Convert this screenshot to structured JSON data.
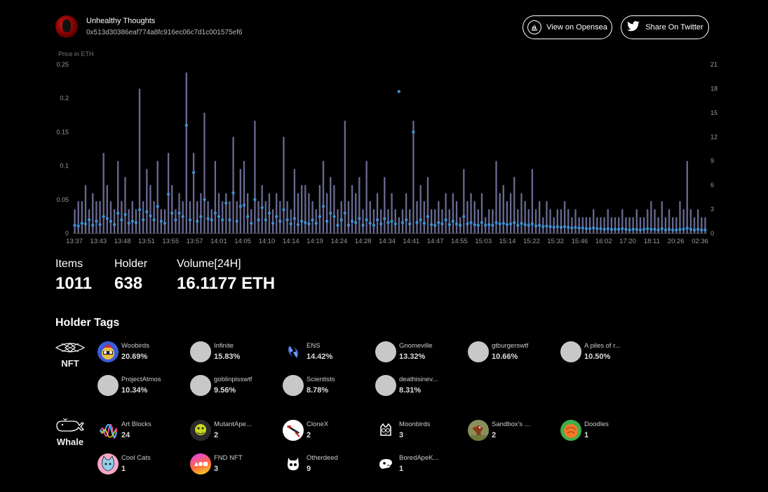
{
  "collection": {
    "name": "Unhealthy Thoughts",
    "address": "0x513d30386eaf774a8fc916ec06c7d1c001575ef6"
  },
  "buttons": {
    "opensea": "View on Opensea",
    "twitter": "Share On Twitter"
  },
  "chart_data": {
    "type": "bar",
    "title": "",
    "ylabel": "Price in ETH",
    "ylim": [
      0,
      0.25
    ],
    "yticks": [
      "0",
      "0.05",
      "0.1",
      "0.15",
      "0.2",
      "0.25"
    ],
    "y2lim": [
      0,
      21
    ],
    "y2ticks": [
      "0",
      "3",
      "6",
      "9",
      "12",
      "15",
      "18",
      "21"
    ],
    "xticks": [
      "13:37",
      "13:43",
      "13:48",
      "13:51",
      "13:55",
      "13:57",
      "14:01",
      "14:05",
      "14:10",
      "14:14",
      "14:19",
      "14:24",
      "14:28",
      "14:34",
      "14:41",
      "14:47",
      "14:55",
      "15:03",
      "15:14",
      "15:22",
      "15:32",
      "15:46",
      "16:02",
      "17:20",
      "18:11",
      "20:26",
      "02:36"
    ],
    "series": [
      {
        "name": "Volume (count)",
        "kind": "bar",
        "axis": "right",
        "color": "#6f6f9a",
        "values": [
          3,
          4,
          4,
          6,
          3,
          5,
          4,
          4,
          10,
          6,
          4,
          3,
          9,
          4,
          7,
          3,
          4,
          3,
          18,
          4,
          8,
          6,
          4,
          9,
          3,
          3,
          10,
          6,
          3,
          5,
          4,
          20,
          4,
          10,
          4,
          5,
          15,
          4,
          3,
          9,
          5,
          4,
          5,
          4,
          12,
          4,
          8,
          9,
          5,
          3,
          14,
          4,
          6,
          4,
          5,
          3,
          5,
          4,
          12,
          4,
          3,
          8,
          5,
          6,
          6,
          5,
          4,
          3,
          6,
          9,
          5,
          7,
          6,
          3,
          4,
          14,
          4,
          6,
          5,
          7,
          3,
          9,
          4,
          3,
          5,
          3,
          7,
          3,
          5,
          3,
          2,
          3,
          5,
          3,
          14,
          4,
          6,
          4,
          7,
          3,
          3,
          4,
          3,
          5,
          3,
          5,
          4,
          2,
          8,
          4,
          5,
          4,
          3,
          5,
          2,
          3,
          3,
          9,
          5,
          6,
          4,
          5,
          7,
          3,
          5,
          4,
          3,
          8,
          3,
          4,
          2,
          4,
          3,
          2,
          3,
          3,
          4,
          3,
          2,
          3,
          2,
          2,
          2,
          2,
          3,
          2,
          2,
          2,
          3,
          2,
          2,
          2,
          3,
          2,
          2,
          2,
          3,
          2,
          2,
          3,
          4,
          3,
          2,
          4,
          2,
          3,
          2,
          2,
          4,
          3,
          9,
          3,
          2,
          3,
          2,
          2
        ]
      },
      {
        "name": "Price (ETH)",
        "kind": "scatter",
        "axis": "left",
        "color": "#3d8fd0",
        "values": [
          0.012,
          0.011,
          0.015,
          0.014,
          0.02,
          0.012,
          0.018,
          0.013,
          0.025,
          0.022,
          0.018,
          0.013,
          0.03,
          0.02,
          0.028,
          0.015,
          0.018,
          0.016,
          0.035,
          0.02,
          0.032,
          0.026,
          0.02,
          0.04,
          0.018,
          0.015,
          0.058,
          0.03,
          0.02,
          0.03,
          0.025,
          0.16,
          0.02,
          0.09,
          0.018,
          0.025,
          0.05,
          0.022,
          0.02,
          0.03,
          0.025,
          0.02,
          0.045,
          0.02,
          0.06,
          0.018,
          0.04,
          0.042,
          0.025,
          0.015,
          0.05,
          0.02,
          0.038,
          0.02,
          0.03,
          0.015,
          0.025,
          0.018,
          0.035,
          0.02,
          0.014,
          0.022,
          0.013,
          0.018,
          0.016,
          0.014,
          0.02,
          0.015,
          0.025,
          0.04,
          0.018,
          0.03,
          0.025,
          0.012,
          0.02,
          0.03,
          0.012,
          0.018,
          0.016,
          0.022,
          0.012,
          0.02,
          0.015,
          0.012,
          0.02,
          0.014,
          0.022,
          0.016,
          0.018,
          0.014,
          0.21,
          0.016,
          0.02,
          0.014,
          0.15,
          0.016,
          0.02,
          0.015,
          0.025,
          0.013,
          0.012,
          0.016,
          0.014,
          0.02,
          0.013,
          0.018,
          0.014,
          0.012,
          0.025,
          0.014,
          0.016,
          0.013,
          0.012,
          0.016,
          0.012,
          0.013,
          0.012,
          0.016,
          0.014,
          0.015,
          0.013,
          0.014,
          0.016,
          0.012,
          0.015,
          0.013,
          0.012,
          0.014,
          0.011,
          0.012,
          0.01,
          0.011,
          0.01,
          0.009,
          0.01,
          0.009,
          0.01,
          0.009,
          0.008,
          0.009,
          0.008,
          0.008,
          0.007,
          0.007,
          0.008,
          0.007,
          0.007,
          0.006,
          0.007,
          0.006,
          0.006,
          0.006,
          0.007,
          0.006,
          0.005,
          0.006,
          0.006,
          0.005,
          0.006,
          0.007,
          0.006,
          0.006,
          0.005,
          0.007,
          0.005,
          0.006,
          0.005,
          0.005,
          0.006,
          0.006,
          0.008,
          0.006,
          0.005,
          0.006,
          0.005,
          0.005
        ]
      }
    ]
  },
  "stats": {
    "items_label": "Items",
    "items_value": "1011",
    "holder_label": "Holder",
    "holder_value": "638",
    "volume_label": "Volume[24H]",
    "volume_value": "16.1177 ETH"
  },
  "holder_tags": {
    "title": "Holder Tags",
    "nft_label": "NFT",
    "whale_label": "Whale",
    "nft": [
      {
        "name": "Woobirds",
        "value": "20.69%",
        "icon": "woobirds-avatar",
        "color": "#3b5bd8"
      },
      {
        "name": "Infinite",
        "value": "15.83%",
        "icon": "placeholder-avatar",
        "color": "#c8c8c8"
      },
      {
        "name": "ENS",
        "value": "14.42%",
        "icon": "ens-logo",
        "color": "#5b8cf5"
      },
      {
        "name": "Gnomeville",
        "value": "13.32%",
        "icon": "placeholder-avatar",
        "color": "#c8c8c8"
      },
      {
        "name": "gtburgerswtf",
        "value": "10.66%",
        "icon": "placeholder-avatar",
        "color": "#c8c8c8"
      },
      {
        "name": "A piles of r...",
        "value": "10.50%",
        "icon": "placeholder-avatar",
        "color": "#c8c8c8"
      },
      {
        "name": "ProjectAtmos",
        "value": "10.34%",
        "icon": "placeholder-avatar",
        "color": "#c8c8c8"
      },
      {
        "name": "goblinpisswtf",
        "value": "9.56%",
        "icon": "placeholder-avatar",
        "color": "#c8c8c8"
      },
      {
        "name": "Scientists",
        "value": "8.78%",
        "icon": "placeholder-avatar",
        "color": "#c8c8c8"
      },
      {
        "name": "deathisinev...",
        "value": "8.31%",
        "icon": "placeholder-avatar",
        "color": "#c8c8c8"
      }
    ],
    "whale": [
      {
        "name": "Art Blocks",
        "value": "24",
        "icon": "artblocks-logo",
        "color": "#ff3fa0"
      },
      {
        "name": "MutantApe...",
        "value": "2",
        "icon": "mutantape-avatar",
        "color": "#2a2a2a"
      },
      {
        "name": "CloneX",
        "value": "2",
        "icon": "clonex-avatar",
        "color": "#ffffff"
      },
      {
        "name": "Moonbirds",
        "value": "3",
        "icon": "moonbirds-logo",
        "color": "#000000"
      },
      {
        "name": "Sandbox's ...",
        "value": "2",
        "icon": "sandbox-avatar",
        "color": "#8a8f5a"
      },
      {
        "name": "Doodles",
        "value": "1",
        "icon": "doodles-avatar",
        "color": "#3fae4a"
      },
      {
        "name": "Cool Cats",
        "value": "1",
        "icon": "coolcats-avatar",
        "color": "#f4a8c8"
      },
      {
        "name": "FND NFT",
        "value": "3",
        "icon": "fnd-avatar",
        "color": "#e040fb"
      },
      {
        "name": "Otherdeed",
        "value": "9",
        "icon": "otherdeed-logo",
        "color": "#000000"
      },
      {
        "name": "BoredApeK...",
        "value": "1",
        "icon": "boredape-logo",
        "color": "#000000"
      }
    ]
  }
}
